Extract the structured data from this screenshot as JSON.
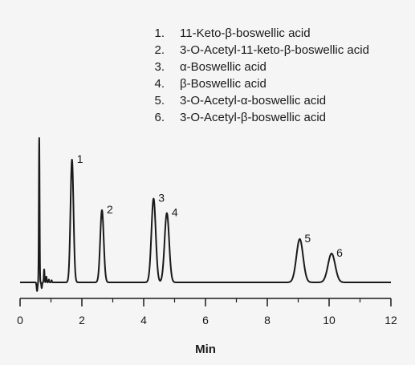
{
  "chart_data": {
    "type": "line",
    "title": "",
    "xlabel": "Min",
    "ylabel": "",
    "xlim": [
      0,
      12
    ],
    "xticks": [
      "0",
      "2",
      "4",
      "6",
      "8",
      "10",
      "12"
    ],
    "xtick_values": [
      0,
      2,
      4,
      6,
      8,
      10,
      12
    ],
    "grid": false,
    "line_color": "#1a1a1a",
    "background": "#f5f5f5",
    "legend_position": "top-right",
    "legend": [
      {
        "num": "1.",
        "name": "11-Keto-β-boswellic acid"
      },
      {
        "num": "2.",
        "name": "3-O-Acetyl-11-keto-β-boswellic acid"
      },
      {
        "num": "3.",
        "name": "α-Boswellic acid"
      },
      {
        "num": "4.",
        "name": "β-Boswellic acid"
      },
      {
        "num": "5.",
        "name": "3-O-Acetyl-α-boswellic acid"
      },
      {
        "num": "6.",
        "name": "3-O-Acetyl-β-boswellic acid"
      }
    ],
    "void_peak": {
      "x": 0.62,
      "height": 1.0
    },
    "peaks": [
      {
        "label": "1",
        "x": 1.68,
        "height": 0.85
      },
      {
        "label": "2",
        "x": 2.65,
        "height": 0.5
      },
      {
        "label": "3",
        "x": 4.32,
        "height": 0.58
      },
      {
        "label": "4",
        "x": 4.75,
        "height": 0.48
      },
      {
        "label": "5",
        "x": 9.05,
        "height": 0.3
      },
      {
        "label": "6",
        "x": 10.08,
        "height": 0.2
      }
    ]
  }
}
